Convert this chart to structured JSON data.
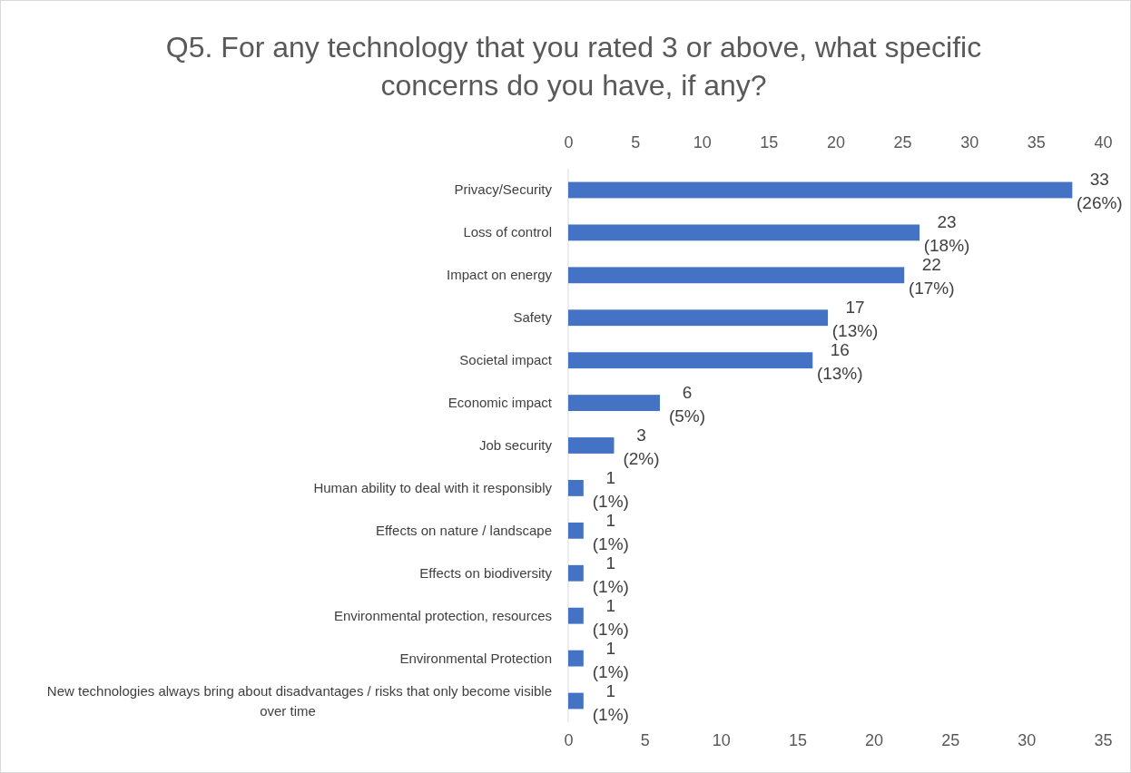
{
  "chart_data": {
    "type": "bar",
    "orientation": "horizontal",
    "title": "Q5. For any technology that you rated 3 or above, what specific concerns do you have, if any?",
    "categories": [
      "Privacy/Security",
      "Loss of control",
      "Impact on energy",
      "Safety",
      "Societal impact",
      "Economic impact",
      "Job security",
      "Human ability to deal with it responsibly",
      "Effects on nature / landscape",
      "Effects on biodiversity",
      "Environmental protection, resources",
      "Environmental Protection",
      "New technologies always bring about disadvantages / risks that only become visible over time"
    ],
    "values": [
      33,
      23,
      22,
      17,
      16,
      6,
      3,
      1,
      1,
      1,
      1,
      1,
      1
    ],
    "value_labels": [
      "33\n(26%)",
      "23\n(18%)",
      "22\n(17%)",
      "17\n(13%)",
      "16\n(13%)",
      "6\n(5%)",
      "3\n(2%)",
      "1\n(1%)",
      "1\n(1%)",
      "1\n(1%)",
      "1\n(1%)",
      "1\n(1%)",
      "1\n(1%)"
    ],
    "color": "#4472c4",
    "xlim": [
      0,
      35
    ],
    "xticks": [
      0,
      5,
      10,
      15,
      20,
      25,
      30,
      35
    ],
    "x2lim": [
      0,
      40
    ],
    "x2ticks": [
      0,
      5,
      10,
      15,
      20,
      25,
      30,
      35,
      40
    ]
  }
}
